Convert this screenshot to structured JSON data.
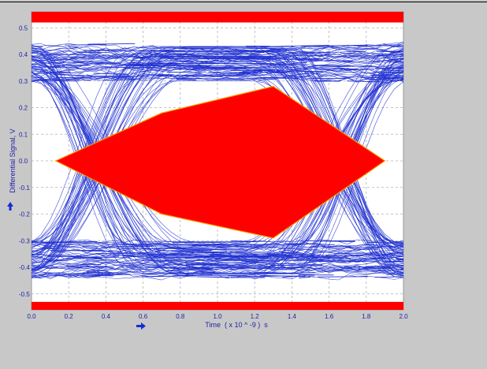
{
  "chart_data": {
    "type": "line",
    "title": "",
    "xlabel": "Time  ( x 10 ^ -9 )  s",
    "ylabel": "Differential Signal, V",
    "xlim": [
      0.0,
      2.0
    ],
    "ylim": [
      -0.56,
      0.56
    ],
    "x_ticks": [
      "0.0",
      "0.2",
      "0.4",
      "0.6",
      "0.8",
      "1.0",
      "1.2",
      "1.4",
      "1.6",
      "1.8",
      "2.0"
    ],
    "y_ticks": [
      "0.5",
      "0.4",
      "0.3",
      "0.2",
      "0.1",
      "0.0",
      "-0.1",
      "-0.2",
      "-0.3",
      "-0.4",
      "-0.5"
    ],
    "grid": true,
    "legend": "none",
    "eye_mask": {
      "polygon": [
        [
          0.13,
          0.0
        ],
        [
          0.7,
          0.18
        ],
        [
          1.3,
          0.28
        ],
        [
          1.9,
          0.0
        ],
        [
          1.3,
          -0.29
        ],
        [
          0.7,
          -0.2
        ]
      ],
      "upper_limit": 0.52,
      "lower_limit": -0.53
    },
    "eye_diagram": {
      "high_level": [
        0.3,
        0.44
      ],
      "low_level": [
        -0.44,
        -0.3
      ],
      "crossing_times": [
        0.0,
        2.0
      ]
    },
    "colors": {
      "traces": "#1f2fd0",
      "mask": "#ff0000",
      "mask_edge": "#ff9900",
      "plot_bg": "#ffffff",
      "page_bg": "#c8c8c8",
      "axis_text": "#2222aa",
      "arrow": "#1030d0"
    }
  }
}
